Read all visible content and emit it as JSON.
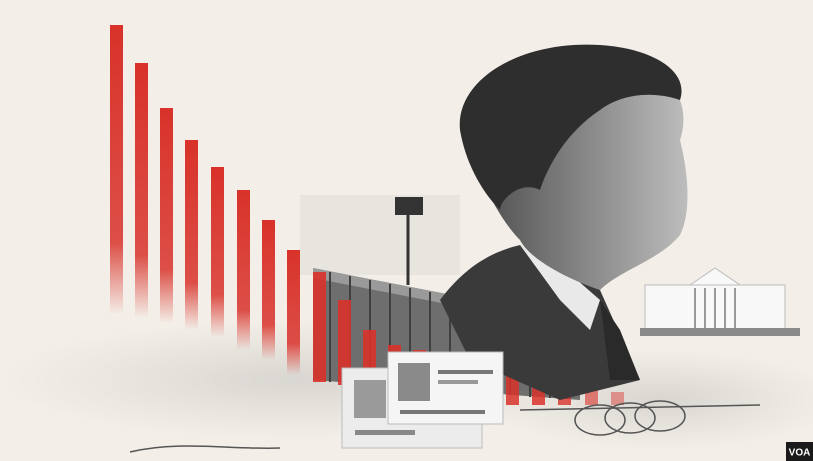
{
  "logo": "VOA"
}
